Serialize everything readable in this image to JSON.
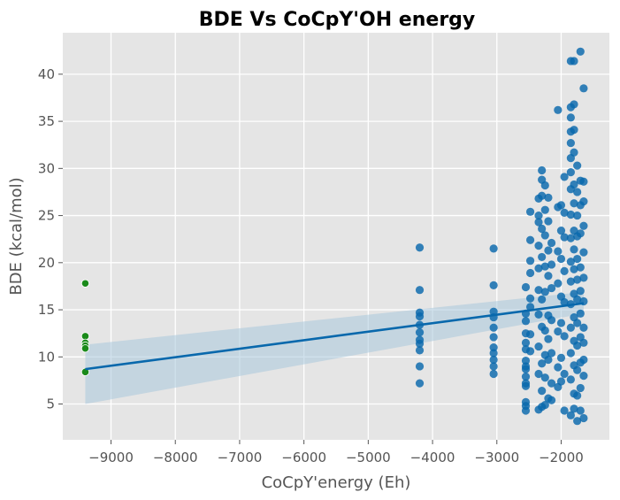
{
  "chart_data": {
    "type": "scatter",
    "title": "BDE Vs CoCpY'OH energy",
    "xlabel": "CoCpY'energy (Eh)",
    "ylabel": "BDE (kcal/mol)",
    "xlim": [
      -9750,
      -1250
    ],
    "ylim": [
      1.2,
      44.4
    ],
    "xticks": [
      -9000,
      -8000,
      -7000,
      -6000,
      -5000,
      -4000,
      -3000,
      -2000
    ],
    "xtick_labels": [
      "−9000",
      "−8000",
      "−7000",
      "−6000",
      "−5000",
      "−4000",
      "−3000",
      "−2000"
    ],
    "yticks": [
      5,
      10,
      15,
      20,
      25,
      30,
      35,
      40
    ],
    "ytick_labels": [
      "5",
      "10",
      "15",
      "20",
      "25",
      "30",
      "35",
      "40"
    ],
    "grid": true,
    "colors": {
      "background": "#e5e5e5",
      "grid": "#ffffff",
      "main_points": "#0868ac",
      "outlier_points": "#1a8a1a",
      "regression_line": "#0868ac",
      "confidence_band": "#a9c8dc"
    },
    "regression": {
      "x": [
        -9400,
        -1650
      ],
      "y": [
        8.7,
        15.7
      ],
      "ci_lower": [
        5.0,
        14.6
      ],
      "ci_upper": [
        11.3,
        16.9
      ]
    },
    "outlier_series": {
      "x": [
        -9400,
        -9400,
        -9400,
        -9400,
        -9400,
        -9400
      ],
      "y": [
        17.8,
        12.2,
        11.5,
        11.2,
        10.9,
        8.4
      ]
    },
    "main_series": {
      "x": [
        -4200,
        -4200,
        -4200,
        -4200,
        -4200,
        -4200,
        -4200,
        -4200,
        -4200,
        -4200,
        -4200,
        -3050,
        -3050,
        -3050,
        -3050,
        -3050,
        -3050,
        -3050,
        -3050,
        -3050,
        -3050,
        -3050,
        -2550,
        -2550,
        -2550,
        -2550,
        -2550,
        -2550,
        -2550,
        -2550,
        -2550,
        -2550,
        -2550,
        -2550,
        -2550,
        -2550,
        -2550,
        -2480,
        -2480,
        -2480,
        -2480,
        -2480,
        -2480,
        -2480,
        -2480,
        -2350,
        -2350,
        -2350,
        -2350,
        -2350,
        -2350,
        -2350,
        -2350,
        -2350,
        -2350,
        -2300,
        -2300,
        -2300,
        -2300,
        -2300,
        -2300,
        -2300,
        -2300,
        -2300,
        -2300,
        -2250,
        -2250,
        -2250,
        -2250,
        -2250,
        -2250,
        -2250,
        -2250,
        -2250,
        -2200,
        -2200,
        -2200,
        -2200,
        -2200,
        -2200,
        -2200,
        -2200,
        -2150,
        -2150,
        -2150,
        -2150,
        -2150,
        -2150,
        -2150,
        -2050,
        -2050,
        -2050,
        -2050,
        -2050,
        -2050,
        -2050,
        -2000,
        -2000,
        -2000,
        -2000,
        -2000,
        -2000,
        -2000,
        -1950,
        -1950,
        -1950,
        -1950,
        -1950,
        -1950,
        -1950,
        -1950,
        -1850,
        -1850,
        -1850,
        -1850,
        -1850,
        -1850,
        -1850,
        -1850,
        -1850,
        -1850,
        -1850,
        -1850,
        -1850,
        -1850,
        -1850,
        -1850,
        -1850,
        -1800,
        -1800,
        -1800,
        -1800,
        -1800,
        -1800,
        -1800,
        -1800,
        -1800,
        -1800,
        -1800,
        -1800,
        -1800,
        -1800,
        -1800,
        -1750,
        -1750,
        -1750,
        -1750,
        -1750,
        -1750,
        -1750,
        -1750,
        -1750,
        -1750,
        -1750,
        -1750,
        -1700,
        -1700,
        -1700,
        -1700,
        -1700,
        -1700,
        -1700,
        -1700,
        -1700,
        -1700,
        -1700,
        -1650,
        -1650,
        -1650,
        -1650,
        -1650,
        -1650,
        -1650,
        -1650,
        -1650,
        -1650,
        -1650,
        -1650
      ],
      "y": [
        21.6,
        17.1,
        14.7,
        14.3,
        13.4,
        12.6,
        11.8,
        11.4,
        10.7,
        9.0,
        7.2,
        21.5,
        17.6,
        14.8,
        14.2,
        13.1,
        12.1,
        11.0,
        10.4,
        9.7,
        9.0,
        8.2,
        17.4,
        14.6,
        13.8,
        12.5,
        11.5,
        10.8,
        9.6,
        9.0,
        8.7,
        7.9,
        7.2,
        6.9,
        5.2,
        4.8,
        4.3,
        25.4,
        22.4,
        20.2,
        18.9,
        16.2,
        15.3,
        12.4,
        10.6,
        26.8,
        25.0,
        24.3,
        21.8,
        19.4,
        17.1,
        14.5,
        11.1,
        8.2,
        4.4,
        29.8,
        28.8,
        27.1,
        23.6,
        20.6,
        16.1,
        13.2,
        9.3,
        6.4,
        4.7,
        28.2,
        25.6,
        22.9,
        19.6,
        16.9,
        12.8,
        10.2,
        7.8,
        4.9,
        26.9,
        24.4,
        21.3,
        18.6,
        14.4,
        11.9,
        9.7,
        5.6,
        22.1,
        19.8,
        17.3,
        13.9,
        10.4,
        7.2,
        5.4,
        36.2,
        25.9,
        21.2,
        17.8,
        12.7,
        8.9,
        6.8,
        26.1,
        23.4,
        20.4,
        16.4,
        13.6,
        9.9,
        7.4,
        29.1,
        25.3,
        22.7,
        19.1,
        15.8,
        12.2,
        8.2,
        4.3,
        41.4,
        36.5,
        35.4,
        33.9,
        32.7,
        31.1,
        29.6,
        27.8,
        25.1,
        22.6,
        20.1,
        18.0,
        15.6,
        13.1,
        10.4,
        7.6,
        3.8,
        41.4,
        36.8,
        34.1,
        31.7,
        28.3,
        26.3,
        23.4,
        21.4,
        19.3,
        16.7,
        14.2,
        11.7,
        9.1,
        6.1,
        4.5,
        30.3,
        27.5,
        25.0,
        22.8,
        20.4,
        18.2,
        16.1,
        13.6,
        11.2,
        8.6,
        5.9,
        3.2,
        42.4,
        28.7,
        26.1,
        23.1,
        19.5,
        17.0,
        14.6,
        12.1,
        9.4,
        6.7,
        4.3,
        38.5,
        28.6,
        26.5,
        23.9,
        21.1,
        18.4,
        15.9,
        13.1,
        11.5,
        9.7,
        8.0,
        3.5
      ]
    }
  }
}
